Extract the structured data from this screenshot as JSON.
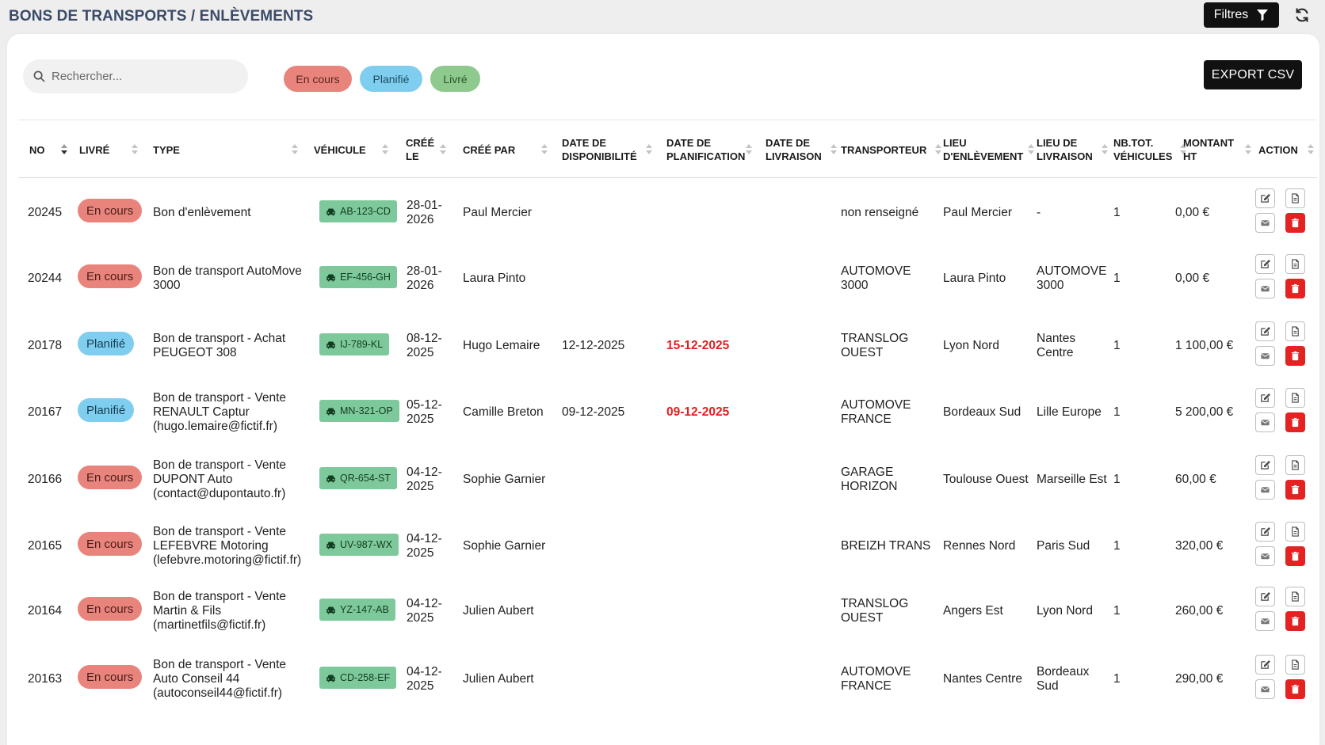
{
  "header": {
    "title": "BONS DE TRANSPORTS / ENLÈVEMENTS",
    "filter_label": "Filtres"
  },
  "search": {
    "placeholder": "Rechercher...",
    "value": ""
  },
  "chips": [
    {
      "label": "En cours"
    },
    {
      "label": "Planifié"
    },
    {
      "label": "Livré"
    }
  ],
  "export_label": "EXPORT CSV",
  "columns": {
    "no": "NO",
    "livre": "LIVRÉ",
    "type": "TYPE",
    "vehicule": "VÉHICULE",
    "cree_le": "CRÉÉ LE",
    "cree_par": "CRÉÉ PAR",
    "date_dispo": "DATE DE DISPONIBILITÉ",
    "date_planif": "DATE DE PLANIFICATION",
    "date_livraison": "DATE DE LIVRAISON",
    "transporteur": "TRANSPORTEUR",
    "lieu_enlevement": "LIEU D'ENLÈVEMENT",
    "lieu_livraison": "LIEU DE LIVRAISON",
    "nb_vehicules": "NB.TOT. VÉHICULES",
    "montant": "MONTANT HT",
    "action": "ACTION"
  },
  "rows": [
    {
      "no": "20245",
      "status": "En cours",
      "status_key": "encours",
      "type": "Bon d'enlèvement",
      "vehicle": "AB-123-CD",
      "cree_le": "28-01-2026",
      "cree_par": "Paul Mercier",
      "date_dispo": "",
      "date_planif": "",
      "date_livraison": "",
      "transporteur": "non renseigné",
      "lieu_enlevement": "Paul Mercier",
      "lieu_livraison": "-",
      "nb": "1",
      "montant": "0,00 €"
    },
    {
      "no": "20244",
      "status": "En cours",
      "status_key": "encours",
      "type": "Bon de transport AutoMove 3000",
      "vehicle": "EF-456-GH",
      "cree_le": "28-01-2026",
      "cree_par": "Laura Pinto",
      "date_dispo": "",
      "date_planif": "",
      "date_livraison": "",
      "transporteur": "AUTOMOVE 3000",
      "lieu_enlevement": "Laura Pinto",
      "lieu_livraison": "AUTOMOVE 3000",
      "nb": "1",
      "montant": "0,00 €"
    },
    {
      "no": "20178",
      "status": "Planifié",
      "status_key": "planifie",
      "type": "Bon de transport - Achat PEUGEOT 308",
      "vehicle": "IJ-789-KL",
      "cree_le": "08-12-2025",
      "cree_par": "Hugo Lemaire",
      "date_dispo": "12-12-2025",
      "date_planif": "15-12-2025",
      "date_livraison": "",
      "transporteur": "TRANSLOG OUEST",
      "lieu_enlevement": "Lyon Nord",
      "lieu_livraison": "Nantes Centre",
      "nb": "1",
      "montant": "1 100,00 €"
    },
    {
      "no": "20167",
      "status": "Planifié",
      "status_key": "planifie",
      "type": "Bon de transport - Vente RENAULT Captur (hugo.lemaire@fictif.fr)",
      "vehicle": "MN-321-OP",
      "cree_le": "05-12-2025",
      "cree_par": "Camille Breton",
      "date_dispo": "09-12-2025",
      "date_planif": "09-12-2025",
      "date_livraison": "",
      "transporteur": "AUTOMOVE FRANCE",
      "lieu_enlevement": "Bordeaux Sud",
      "lieu_livraison": "Lille Europe",
      "nb": "1",
      "montant": "5 200,00 €"
    },
    {
      "no": "20166",
      "status": "En cours",
      "status_key": "encours",
      "type": "Bon de transport - Vente DUPONT Auto (contact@dupontauto.fr)",
      "vehicle": "QR-654-ST",
      "cree_le": "04-12-2025",
      "cree_par": "Sophie Garnier",
      "date_dispo": "",
      "date_planif": "",
      "date_livraison": "",
      "transporteur": "GARAGE HORIZON",
      "lieu_enlevement": "Toulouse Ouest",
      "lieu_livraison": "Marseille Est",
      "nb": "1",
      "montant": "60,00 €"
    },
    {
      "no": "20165",
      "status": "En cours",
      "status_key": "encours",
      "type": "Bon de transport - Vente LEFEBVRE Motoring (lefebvre.motoring@fictif.fr)",
      "vehicle": "UV-987-WX",
      "cree_le": "04-12-2025",
      "cree_par": "Sophie Garnier",
      "date_dispo": "",
      "date_planif": "",
      "date_livraison": "",
      "transporteur": "BREIZH TRANS",
      "lieu_enlevement": "Rennes Nord",
      "lieu_livraison": "Paris Sud",
      "nb": "1",
      "montant": "320,00 €"
    },
    {
      "no": "20164",
      "status": "En cours",
      "status_key": "encours",
      "type": "Bon de transport - Vente Martin & Fils (martinetfils@fictif.fr)",
      "vehicle": "YZ-147-AB",
      "cree_le": "04-12-2025",
      "cree_par": "Julien Aubert",
      "date_dispo": "",
      "date_planif": "",
      "date_livraison": "",
      "transporteur": "TRANSLOG OUEST",
      "lieu_enlevement": "Angers Est",
      "lieu_livraison": "Lyon Nord",
      "nb": "1",
      "montant": "260,00 €"
    },
    {
      "no": "20163",
      "status": "En cours",
      "status_key": "encours",
      "type": "Bon de transport - Vente Auto Conseil 44 (autoconseil44@fictif.fr)",
      "vehicle": "CD-258-EF",
      "cree_le": "04-12-2025",
      "cree_par": "Julien Aubert",
      "date_dispo": "",
      "date_planif": "",
      "date_livraison": "",
      "transporteur": "AUTOMOVE FRANCE",
      "lieu_enlevement": "Nantes Centre",
      "lieu_livraison": "Bordeaux Sud",
      "nb": "1",
      "montant": "290,00 €"
    }
  ]
}
